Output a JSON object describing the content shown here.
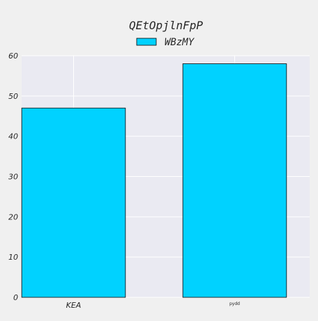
{
  "chart_data": {
    "type": "bar",
    "title": "QEtOpjlnFpP",
    "xlabel": "",
    "ylabel": "",
    "categories": [
      "KEA",
      "pydd"
    ],
    "series": [
      {
        "name": "WBzMY",
        "values": [
          47,
          58
        ]
      }
    ],
    "ylim": [
      0,
      60
    ],
    "yticks": [
      0,
      10,
      20,
      30,
      40,
      50,
      60
    ],
    "grid": true,
    "legend_position": "top-center",
    "colors": {
      "bar": "#00d2ff",
      "bar_edge": "#000000",
      "plot_background": "#eaeaf2",
      "figure_background": "#f0f0f0",
      "grid": "#ffffff"
    }
  }
}
